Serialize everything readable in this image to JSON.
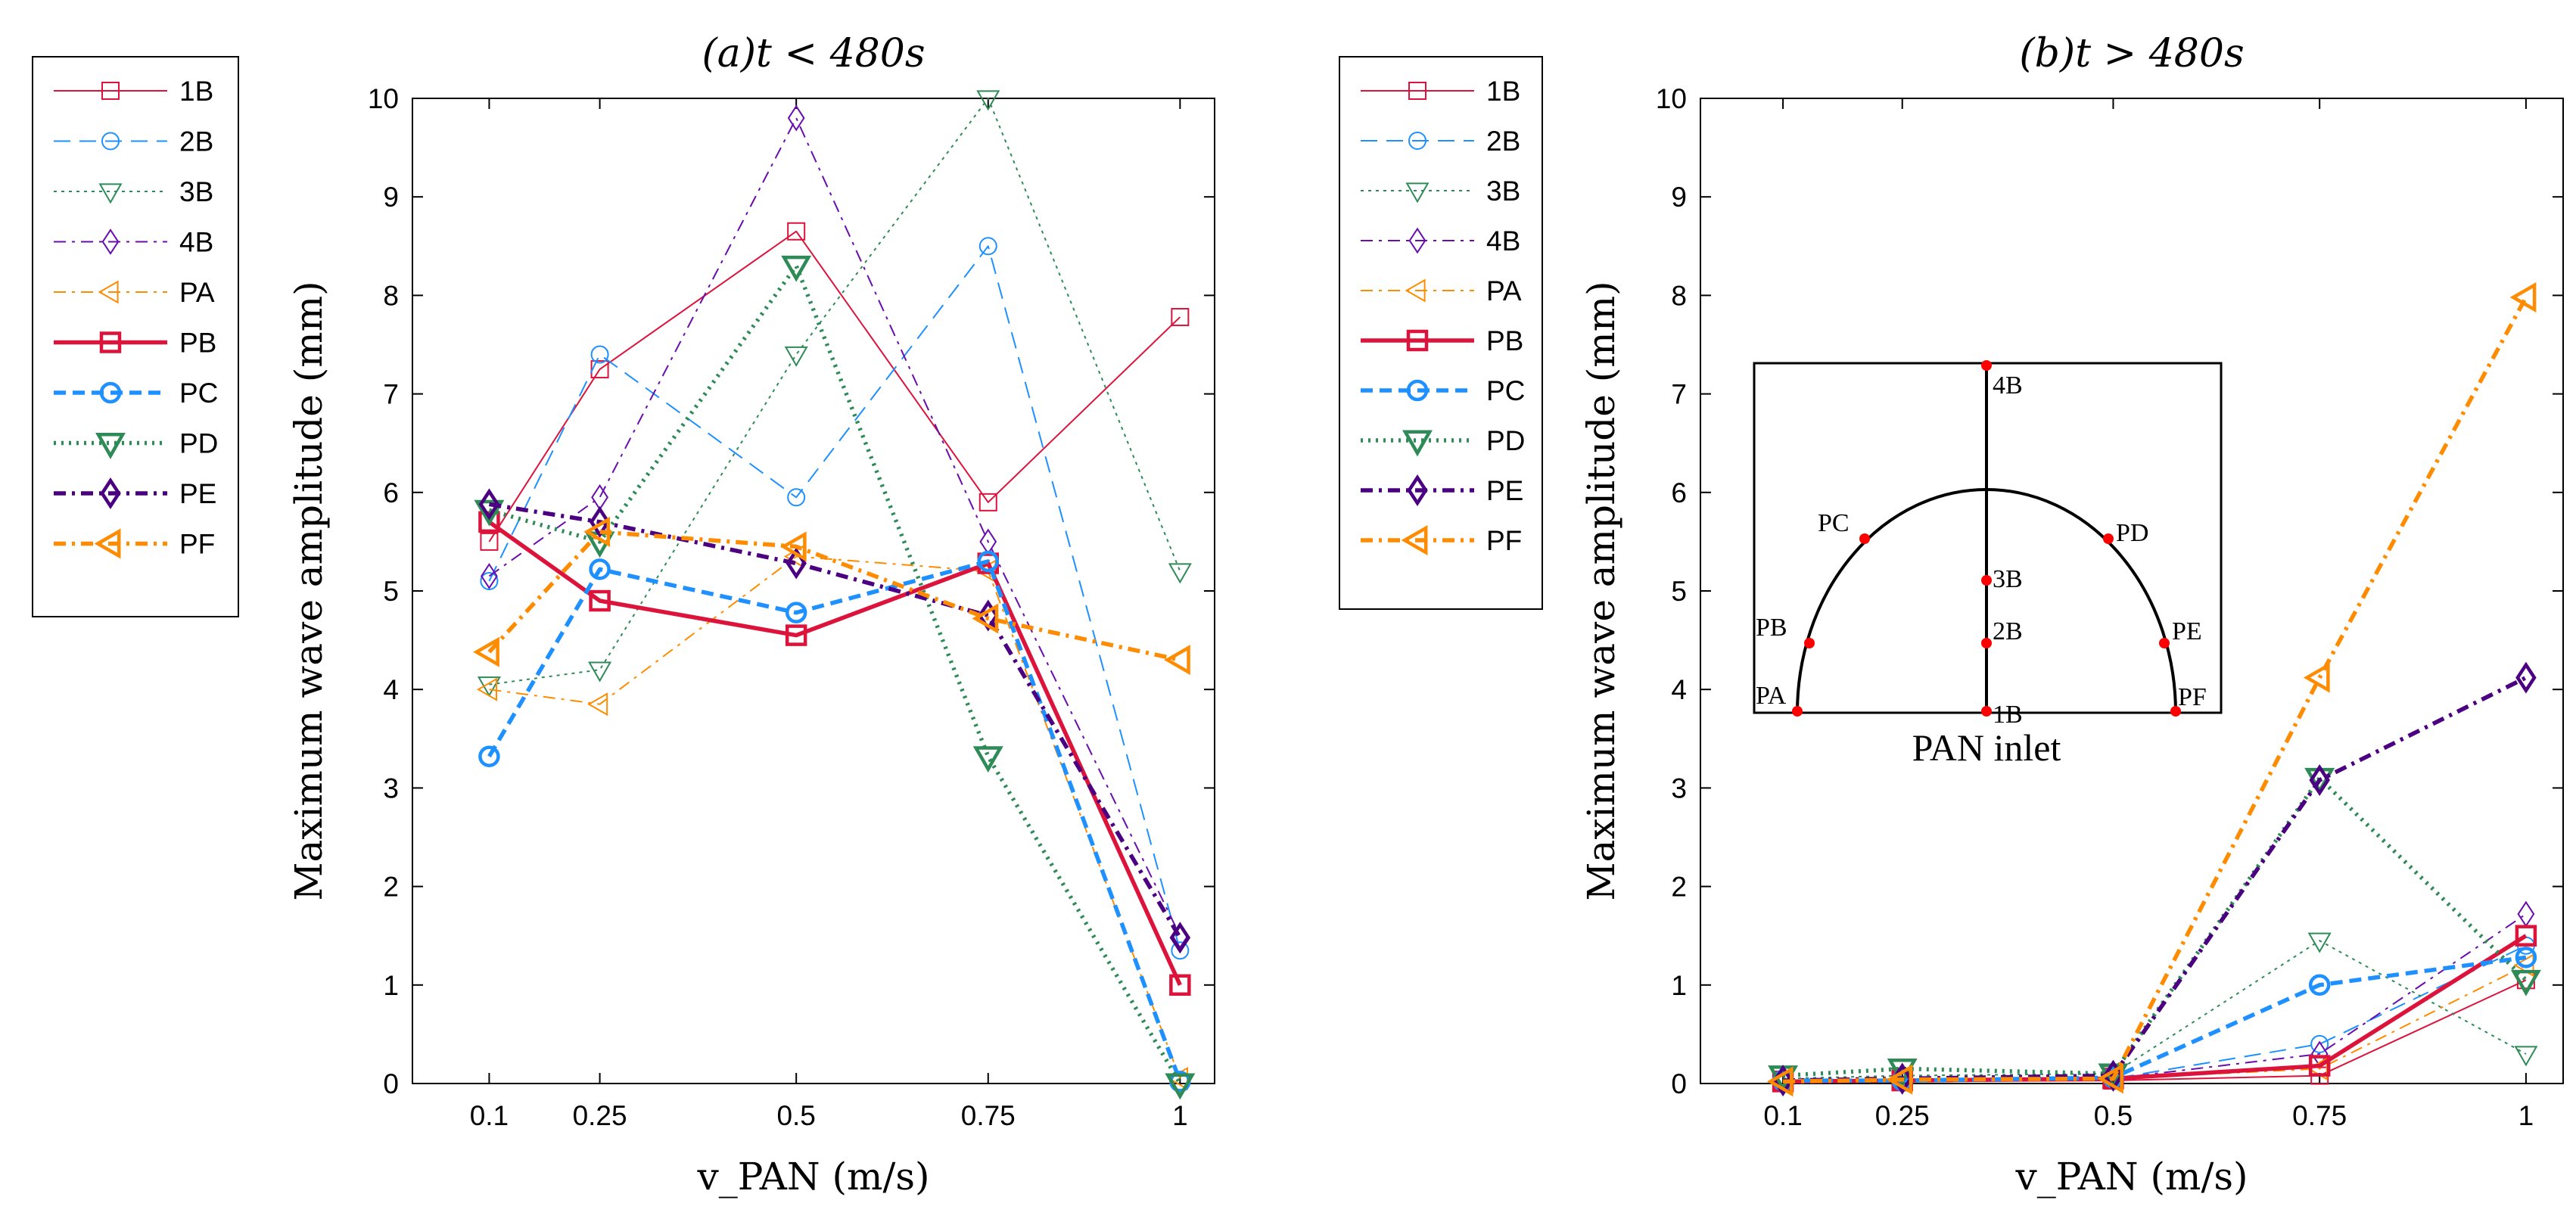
{
  "chart_data": [
    {
      "type": "line",
      "title": "(a)t < 480s",
      "xlabel": "v_PAN (m/s)",
      "ylabel": "Maximum wave amplitude (mm)",
      "x": [
        0.1,
        0.25,
        0.5,
        0.75,
        1
      ],
      "x_tick_labels": [
        "0.1",
        "0.25",
        "0.5",
        "0.75",
        "1"
      ],
      "y_ticks": [
        "0",
        "1",
        "2",
        "3",
        "4",
        "5",
        "6",
        "7",
        "8",
        "9",
        "10"
      ],
      "ylim": [
        0,
        10
      ],
      "legend_position": "outside-left",
      "series": [
        {
          "name": "1B",
          "color": "#dc143c",
          "values": [
            5.5,
            7.25,
            8.65,
            5.9,
            7.78
          ]
        },
        {
          "name": "2B",
          "color": "#1e90ff",
          "values": [
            5.1,
            7.4,
            5.95,
            8.5,
            1.35
          ]
        },
        {
          "name": "3B",
          "color": "#2e8b57",
          "values": [
            4.05,
            4.2,
            7.4,
            10.0,
            5.2
          ]
        },
        {
          "name": "4B",
          "color": "#6a0dad",
          "values": [
            5.15,
            5.95,
            9.8,
            5.5,
            1.5
          ]
        },
        {
          "name": "PA",
          "color": "#ff8c00",
          "values": [
            4.0,
            3.85,
            5.35,
            5.2,
            0.05
          ]
        },
        {
          "name": "PB",
          "color": "#dc143c",
          "values": [
            5.7,
            4.9,
            4.55,
            5.28,
            1.0
          ]
        },
        {
          "name": "PC",
          "color": "#1e90ff",
          "values": [
            3.32,
            5.22,
            4.78,
            5.3,
            0.02
          ]
        },
        {
          "name": "PD",
          "color": "#2e8b57",
          "values": [
            5.82,
            5.5,
            8.3,
            3.32,
            0.0
          ]
        },
        {
          "name": "PE",
          "color": "#4b0082",
          "values": [
            5.88,
            5.7,
            5.28,
            4.75,
            1.48
          ]
        },
        {
          "name": "PF",
          "color": "#ff8c00",
          "values": [
            4.38,
            5.6,
            5.45,
            4.72,
            4.3
          ]
        }
      ]
    },
    {
      "type": "line",
      "title": "(b)t > 480s",
      "xlabel": "v_PAN (m/s)",
      "ylabel": "Maximum wave amplitude (mm)",
      "x": [
        0.1,
        0.25,
        0.5,
        0.75,
        1
      ],
      "x_tick_labels": [
        "0.1",
        "0.25",
        "0.5",
        "0.75",
        "1"
      ],
      "y_ticks": [
        "0",
        "1",
        "2",
        "3",
        "4",
        "5",
        "6",
        "7",
        "8",
        "9",
        "10"
      ],
      "ylim": [
        0,
        10
      ],
      "legend_position": "outside-left",
      "series": [
        {
          "name": "1B",
          "color": "#dc143c",
          "values": [
            0.01,
            0.02,
            0.03,
            0.08,
            1.05
          ]
        },
        {
          "name": "2B",
          "color": "#1e90ff",
          "values": [
            0.02,
            0.03,
            0.05,
            0.4,
            1.4
          ]
        },
        {
          "name": "3B",
          "color": "#2e8b57",
          "values": [
            0.05,
            0.08,
            0.1,
            1.45,
            0.3
          ]
        },
        {
          "name": "4B",
          "color": "#6a0dad",
          "values": [
            0.02,
            0.02,
            0.05,
            0.3,
            1.72
          ]
        },
        {
          "name": "PA",
          "color": "#ff8c00",
          "values": [
            0.02,
            0.04,
            0.05,
            0.15,
            1.2
          ]
        },
        {
          "name": "PB",
          "color": "#dc143c",
          "values": [
            0.02,
            0.03,
            0.05,
            0.18,
            1.5
          ]
        },
        {
          "name": "PC",
          "color": "#1e90ff",
          "values": [
            0.03,
            0.03,
            0.06,
            1.0,
            1.28
          ]
        },
        {
          "name": "PD",
          "color": "#2e8b57",
          "values": [
            0.08,
            0.15,
            0.1,
            3.1,
            1.05
          ]
        },
        {
          "name": "PE",
          "color": "#4b0082",
          "values": [
            0.03,
            0.05,
            0.08,
            3.08,
            4.12
          ]
        },
        {
          "name": "PF",
          "color": "#ff8c00",
          "values": [
            0.02,
            0.04,
            0.05,
            4.12,
            7.98
          ]
        }
      ],
      "inset": {
        "caption": "PAN inlet",
        "points": [
          "4B",
          "3B",
          "2B",
          "1B",
          "PA",
          "PB",
          "PC",
          "PD",
          "PE",
          "PF"
        ],
        "point_color": "#ff0000"
      }
    }
  ]
}
